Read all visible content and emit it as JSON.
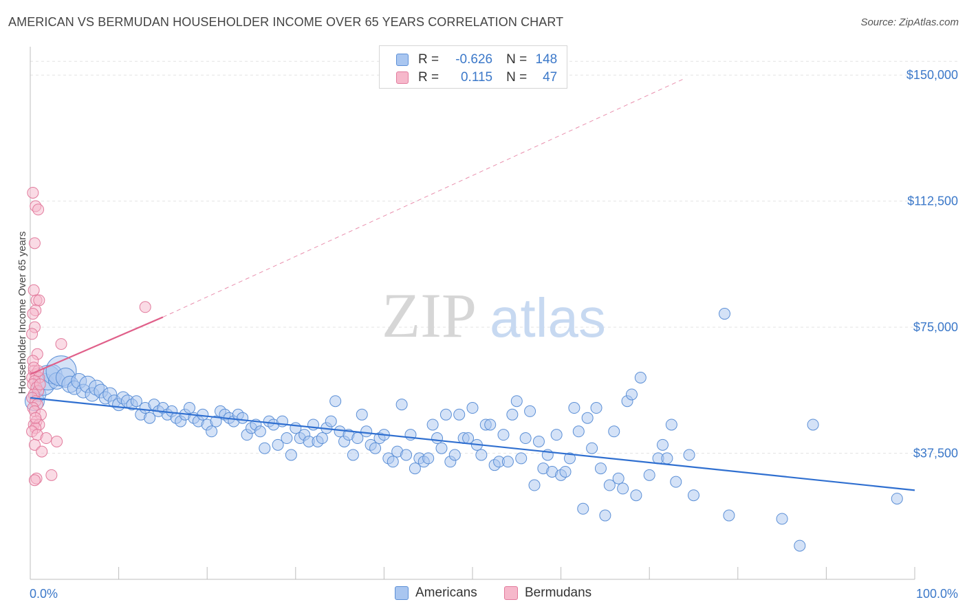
{
  "title": "AMERICAN VS BERMUDAN HOUSEHOLDER INCOME OVER 65 YEARS CORRELATION CHART",
  "source": "Source: ZipAtlas.com",
  "watermark": {
    "zip": "ZIP",
    "atlas": "atlas"
  },
  "legend": {
    "rows": [
      {
        "r_label": "R =",
        "r_value": "-0.626",
        "n_label": "N =",
        "n_value": "148"
      },
      {
        "r_label": "R =",
        "r_value": "0.115",
        "n_label": "N =",
        "n_value": "47"
      }
    ]
  },
  "colors": {
    "americans_fill": "#a9c6f0",
    "americans_stroke": "#5b8fd6",
    "americans_line": "#2f6fd0",
    "bermudans_fill": "#f6b8cb",
    "bermudans_stroke": "#e27a9c",
    "bermudans_line": "#e0608a",
    "tick_text": "#3b78c9",
    "grid": "#e3e3e3"
  },
  "chart_data": {
    "type": "scatter",
    "title": "AMERICAN VS BERMUDAN HOUSEHOLDER INCOME OVER 65 YEARS CORRELATION CHART",
    "xlabel": "",
    "ylabel": "Householder Income Over 65 years",
    "xlim": [
      0,
      100
    ],
    "ylim": [
      0,
      157000
    ],
    "x_ticks": [
      0,
      10,
      20,
      30,
      40,
      50,
      60,
      70,
      80,
      90,
      100
    ],
    "x_tick_labels": {
      "left": "0.0%",
      "right": "100.0%"
    },
    "y_ticks": [
      37500,
      75000,
      112500,
      150000
    ],
    "y_tick_labels": [
      "$37,500",
      "$75,000",
      "$112,500",
      "$150,000"
    ],
    "grid": true,
    "legend_position": "top-center",
    "series": [
      {
        "name": "Americans",
        "trend": {
          "x": [
            0,
            100
          ],
          "y": [
            54000,
            26500
          ],
          "style": "solid"
        },
        "points": [
          [
            0.5,
            53000,
            14
          ],
          [
            1.0,
            55000,
            10
          ],
          [
            1.5,
            58000,
            16
          ],
          [
            2.0,
            60000,
            18
          ],
          [
            2.5,
            61000,
            14
          ],
          [
            3.0,
            59000,
            12
          ],
          [
            3.5,
            62000,
            22
          ],
          [
            4.0,
            60000,
            14
          ],
          [
            4.5,
            58000,
            12
          ],
          [
            5.0,
            57000,
            10
          ],
          [
            5.5,
            59000,
            11
          ],
          [
            6.0,
            56000,
            10
          ],
          [
            6.5,
            58000,
            12
          ],
          [
            7.0,
            55000,
            10
          ],
          [
            7.5,
            57000,
            11
          ],
          [
            8.0,
            56000,
            10
          ],
          [
            8.5,
            54000,
            9
          ],
          [
            9.0,
            55000,
            10
          ],
          [
            9.5,
            53000,
            9
          ],
          [
            10.0,
            52000,
            9
          ],
          [
            10.5,
            54000,
            9
          ],
          [
            11.0,
            53000,
            9
          ],
          [
            11.5,
            52000,
            8
          ],
          [
            12.0,
            53000,
            8
          ],
          [
            12.5,
            49000,
            8
          ],
          [
            13.0,
            51000,
            8
          ],
          [
            13.5,
            48000,
            8
          ],
          [
            14.0,
            52000,
            8
          ],
          [
            14.5,
            50000,
            8
          ],
          [
            15.0,
            51000,
            8
          ],
          [
            15.5,
            49000,
            8
          ],
          [
            16.0,
            50000,
            8
          ],
          [
            16.5,
            48000,
            8
          ],
          [
            17.0,
            47000,
            8
          ],
          [
            17.5,
            49000,
            8
          ],
          [
            18.0,
            51000,
            8
          ],
          [
            18.5,
            48000,
            8
          ],
          [
            19.0,
            47000,
            8
          ],
          [
            19.5,
            49000,
            8
          ],
          [
            20.0,
            46000,
            8
          ],
          [
            20.5,
            44000,
            8
          ],
          [
            21.0,
            47000,
            8
          ],
          [
            21.5,
            50000,
            8
          ],
          [
            22.0,
            49000,
            8
          ],
          [
            22.5,
            48000,
            8
          ],
          [
            23.0,
            47000,
            8
          ],
          [
            23.5,
            49000,
            8
          ],
          [
            24.0,
            48000,
            8
          ],
          [
            24.5,
            43000,
            8
          ],
          [
            25.0,
            45000,
            8
          ],
          [
            25.5,
            46000,
            8
          ],
          [
            26.0,
            44000,
            8
          ],
          [
            26.5,
            39000,
            8
          ],
          [
            27.0,
            47000,
            8
          ],
          [
            27.5,
            46000,
            8
          ],
          [
            28.0,
            40000,
            8
          ],
          [
            28.5,
            47000,
            8
          ],
          [
            29.0,
            42000,
            8
          ],
          [
            29.5,
            37000,
            8
          ],
          [
            30.0,
            45000,
            8
          ],
          [
            30.5,
            42000,
            8
          ],
          [
            31.0,
            43000,
            8
          ],
          [
            31.5,
            41000,
            8
          ],
          [
            32.0,
            46000,
            8
          ],
          [
            32.5,
            41000,
            8
          ],
          [
            33.0,
            42000,
            8
          ],
          [
            33.5,
            45000,
            8
          ],
          [
            34.0,
            47000,
            8
          ],
          [
            34.5,
            53000,
            8
          ],
          [
            35.0,
            44000,
            8
          ],
          [
            35.5,
            41000,
            8
          ],
          [
            36.0,
            43000,
            8
          ],
          [
            36.5,
            37000,
            8
          ],
          [
            37.0,
            42000,
            8
          ],
          [
            37.5,
            49000,
            8
          ],
          [
            38.0,
            44000,
            8
          ],
          [
            38.5,
            40000,
            8
          ],
          [
            39.0,
            39000,
            8
          ],
          [
            39.5,
            42000,
            8
          ],
          [
            40.0,
            43000,
            8
          ],
          [
            40.5,
            36000,
            8
          ],
          [
            41.0,
            35000,
            8
          ],
          [
            41.5,
            38000,
            8
          ],
          [
            42.0,
            52000,
            8
          ],
          [
            42.5,
            37000,
            8
          ],
          [
            43.0,
            43000,
            8
          ],
          [
            43.5,
            33000,
            8
          ],
          [
            44.0,
            36000,
            8
          ],
          [
            44.5,
            35000,
            8
          ],
          [
            45.0,
            36000,
            8
          ],
          [
            45.5,
            46000,
            8
          ],
          [
            46.0,
            42000,
            8
          ],
          [
            46.5,
            39000,
            8
          ],
          [
            47.0,
            49000,
            8
          ],
          [
            47.5,
            35000,
            8
          ],
          [
            48.0,
            37000,
            8
          ],
          [
            48.5,
            49000,
            8
          ],
          [
            49.0,
            42000,
            8
          ],
          [
            49.5,
            42000,
            8
          ],
          [
            50.0,
            51000,
            8
          ],
          [
            50.5,
            40000,
            8
          ],
          [
            51.0,
            37000,
            8
          ],
          [
            51.5,
            46000,
            8
          ],
          [
            52.0,
            46000,
            8
          ],
          [
            52.5,
            34000,
            8
          ],
          [
            53.0,
            35000,
            8
          ],
          [
            53.5,
            43000,
            8
          ],
          [
            54.0,
            35000,
            8
          ],
          [
            54.5,
            49000,
            8
          ],
          [
            55.0,
            53000,
            8
          ],
          [
            55.5,
            36000,
            8
          ],
          [
            56.0,
            42000,
            8
          ],
          [
            56.5,
            50000,
            8
          ],
          [
            57.0,
            28000,
            8
          ],
          [
            57.5,
            41000,
            8
          ],
          [
            58.0,
            33000,
            8
          ],
          [
            58.5,
            37000,
            8
          ],
          [
            59.0,
            32000,
            8
          ],
          [
            59.5,
            43000,
            8
          ],
          [
            60.0,
            31000,
            8
          ],
          [
            60.5,
            32000,
            8
          ],
          [
            61.0,
            36000,
            8
          ],
          [
            61.5,
            51000,
            8
          ],
          [
            62.0,
            44000,
            8
          ],
          [
            62.5,
            21000,
            8
          ],
          [
            63.0,
            48000,
            8
          ],
          [
            63.5,
            39000,
            8
          ],
          [
            64.0,
            51000,
            8
          ],
          [
            64.5,
            33000,
            8
          ],
          [
            65.0,
            19000,
            8
          ],
          [
            65.5,
            28000,
            8
          ],
          [
            66.0,
            44000,
            8
          ],
          [
            66.5,
            30000,
            8
          ],
          [
            67.0,
            27000,
            8
          ],
          [
            67.5,
            53000,
            8
          ],
          [
            68.0,
            55000,
            8
          ],
          [
            68.5,
            25000,
            8
          ],
          [
            69.0,
            60000,
            8
          ],
          [
            70.0,
            31000,
            8
          ],
          [
            71.0,
            36000,
            8
          ],
          [
            71.5,
            40000,
            8
          ],
          [
            72.0,
            36000,
            8
          ],
          [
            72.5,
            46000,
            8
          ],
          [
            73.0,
            29000,
            8
          ],
          [
            74.5,
            37000,
            8
          ],
          [
            75.0,
            25000,
            8
          ],
          [
            78.5,
            79000,
            8
          ],
          [
            79.0,
            19000,
            8
          ],
          [
            85.0,
            18000,
            8
          ],
          [
            87.0,
            10000,
            8
          ],
          [
            88.5,
            46000,
            8
          ],
          [
            98.0,
            24000,
            8
          ]
        ]
      },
      {
        "name": "Bermudans",
        "trend": {
          "x": [
            0,
            15
          ],
          "y": [
            61000,
            78000
          ],
          "style": "solid",
          "extended": {
            "x": [
              15,
              74
            ],
            "y": [
              78000,
              149000
            ],
            "style": "dashed"
          }
        },
        "points": [
          [
            0.3,
            115000,
            8
          ],
          [
            0.6,
            111000,
            8
          ],
          [
            0.9,
            110000,
            8
          ],
          [
            0.5,
            100000,
            8
          ],
          [
            0.4,
            86000,
            8
          ],
          [
            0.7,
            83000,
            8
          ],
          [
            1.0,
            83000,
            8
          ],
          [
            0.6,
            80000,
            8
          ],
          [
            0.3,
            79000,
            8
          ],
          [
            0.5,
            75000,
            8
          ],
          [
            0.2,
            73000,
            8
          ],
          [
            3.5,
            70000,
            8
          ],
          [
            0.8,
            67000,
            8
          ],
          [
            0.3,
            65000,
            8
          ],
          [
            0.4,
            62000,
            8
          ],
          [
            0.6,
            61000,
            8
          ],
          [
            0.2,
            60000,
            8
          ],
          [
            1.0,
            60000,
            8
          ],
          [
            0.5,
            59000,
            8
          ],
          [
            0.3,
            58000,
            8
          ],
          [
            0.7,
            57000,
            8
          ],
          [
            0.9,
            56000,
            8
          ],
          [
            0.4,
            55000,
            8
          ],
          [
            0.2,
            54000,
            8
          ],
          [
            0.6,
            53000,
            8
          ],
          [
            0.8,
            52000,
            8
          ],
          [
            0.3,
            51000,
            8
          ],
          [
            0.5,
            50000,
            8
          ],
          [
            1.2,
            49000,
            8
          ],
          [
            0.7,
            47000,
            8
          ],
          [
            0.4,
            46000,
            8
          ],
          [
            1.0,
            46000,
            8
          ],
          [
            0.6,
            45000,
            8
          ],
          [
            0.2,
            44000,
            8
          ],
          [
            0.8,
            43000,
            8
          ],
          [
            1.8,
            42000,
            8
          ],
          [
            3.0,
            41000,
            8
          ],
          [
            0.5,
            40000,
            8
          ],
          [
            1.3,
            38000,
            8
          ],
          [
            2.4,
            31000,
            8
          ],
          [
            0.7,
            30000,
            8
          ],
          [
            0.5,
            29500,
            8
          ],
          [
            13.0,
            81000,
            8
          ],
          [
            0.9,
            62000,
            8
          ],
          [
            0.4,
            63000,
            8
          ],
          [
            1.1,
            58000,
            8
          ],
          [
            0.6,
            48000,
            8
          ]
        ]
      }
    ]
  },
  "bottom_legend": [
    {
      "label": "Americans"
    },
    {
      "label": "Bermudans"
    }
  ]
}
